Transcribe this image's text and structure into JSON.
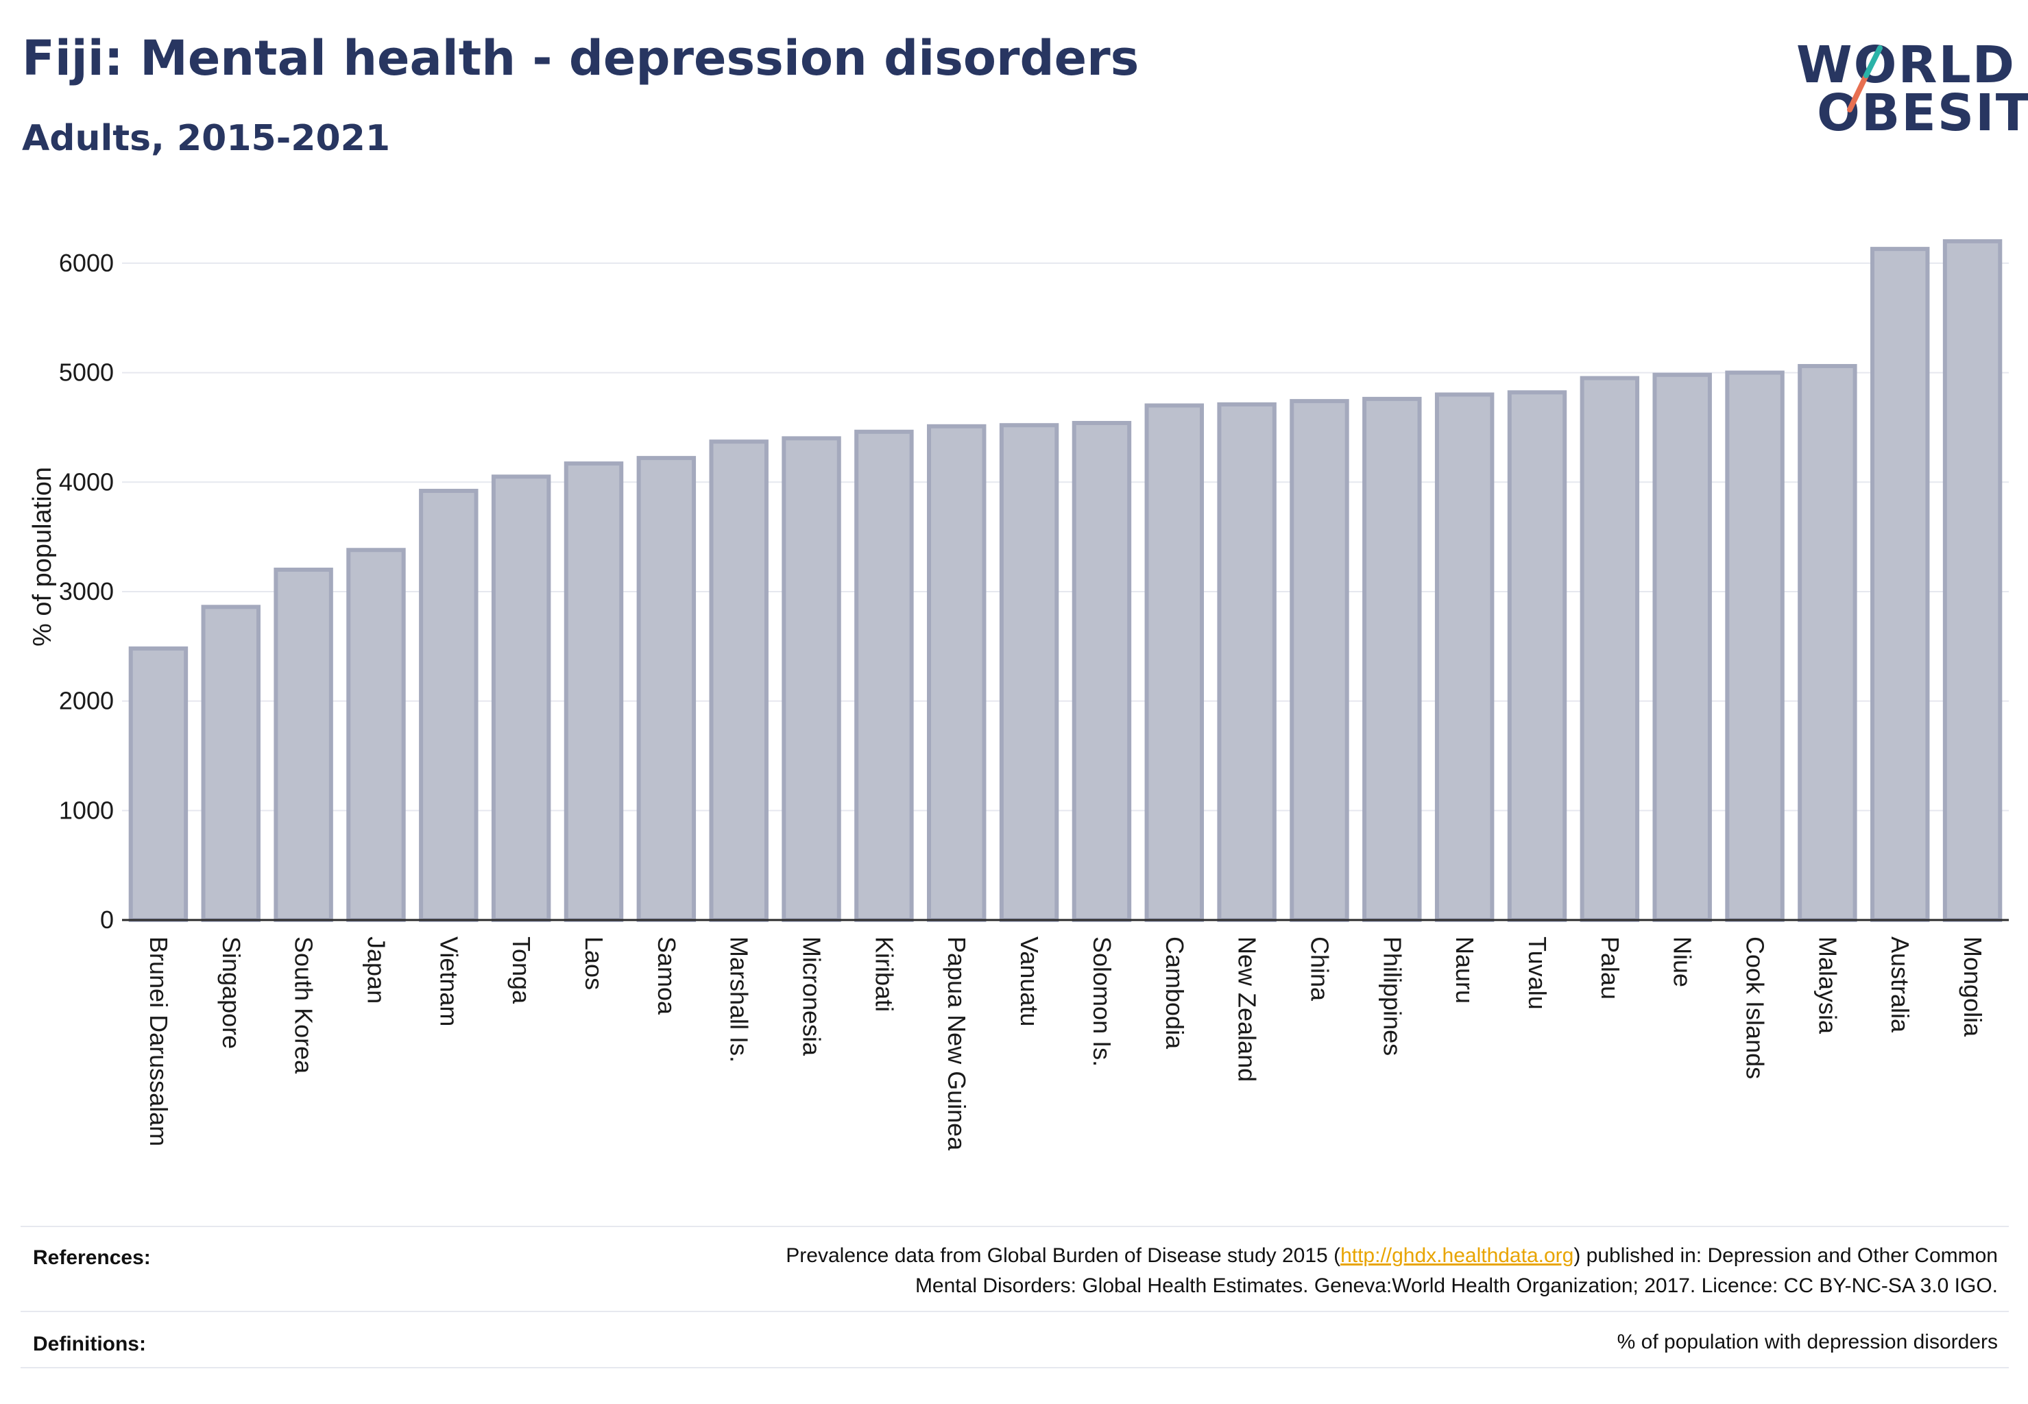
{
  "header": {
    "title": "Fiji: Mental health - depression disorders",
    "subtitle": "Adults, 2015-2021"
  },
  "logo": {
    "line1": "WORLD",
    "line2": "OBESITY",
    "accent_colors": [
      "#2bb3a8",
      "#e76f51"
    ]
  },
  "chart_data": {
    "type": "bar",
    "categories": [
      "Brunei Darussalam",
      "Singapore",
      "South Korea",
      "Japan",
      "Vietnam",
      "Tonga",
      "Laos",
      "Samoa",
      "Marshall Is.",
      "Micronesia",
      "Kiribati",
      "Papua New Guinea",
      "Vanuatu",
      "Solomon Is.",
      "Cambodia",
      "New Zealand",
      "China",
      "Philippines",
      "Nauru",
      "Tuvalu",
      "Palau",
      "Niue",
      "Cook Islands",
      "Malaysia",
      "Australia",
      "Mongolia"
    ],
    "values": [
      2480,
      2860,
      3200,
      3380,
      3920,
      4050,
      4170,
      4220,
      4370,
      4400,
      4460,
      4510,
      4520,
      4540,
      4700,
      4710,
      4740,
      4760,
      4800,
      4820,
      4950,
      4980,
      5000,
      5060,
      6130,
      6200
    ],
    "title": "Fiji: Mental health - depression disorders",
    "xlabel": "",
    "ylabel": "% of population",
    "ylim": [
      0,
      6400
    ],
    "yticks": [
      0,
      1000,
      2000,
      3000,
      4000,
      5000,
      6000
    ],
    "grid": true,
    "bar_color": "#bcc0cd",
    "bar_edge_color": "#a4a9bd"
  },
  "footer": {
    "references_label": "References:",
    "references_pre": "Prevalence data from Global Burden of Disease study 2015 (",
    "references_link": "http://ghdx.healthdata.org",
    "references_post": ") published in: Depression and Other Common",
    "references_line2": "Mental Disorders: Global Health Estimates. Geneva:World Health Organization; 2017. Licence: CC BY-NC-SA 3.0 IGO.",
    "definitions_label": "Definitions:",
    "definitions_text": "% of population with depression disorders"
  }
}
